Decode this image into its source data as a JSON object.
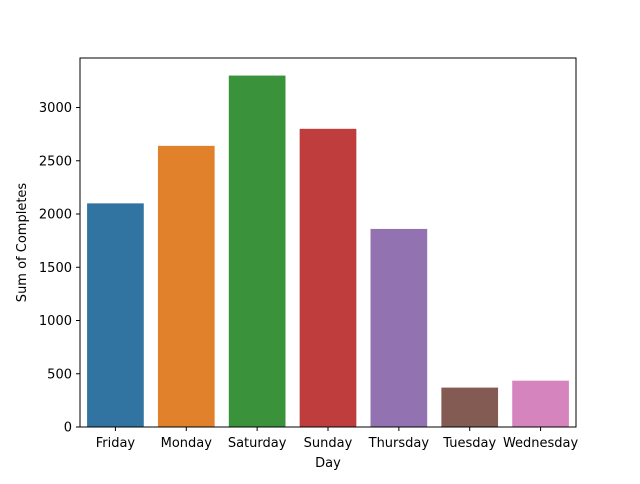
{
  "chart_data": {
    "type": "bar",
    "title": "",
    "xlabel": "Day",
    "ylabel": "Sum of Completes",
    "categories": [
      "Friday",
      "Monday",
      "Saturday",
      "Sunday",
      "Thursday",
      "Tuesday",
      "Wednesday"
    ],
    "values": [
      2100,
      2640,
      3300,
      2800,
      1860,
      370,
      435
    ],
    "colors": [
      "#3274a1",
      "#e1812c",
      "#3a923a",
      "#c03d3e",
      "#9372b2",
      "#845b53",
      "#d684bd"
    ],
    "ylim": [
      0,
      3465
    ],
    "yticks": [
      0,
      500,
      1000,
      1500,
      2000,
      2500,
      3000
    ],
    "grid": false,
    "legend": "none"
  }
}
